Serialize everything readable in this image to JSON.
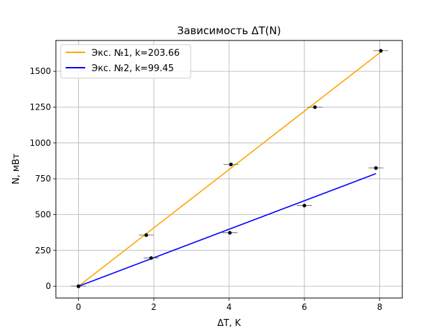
{
  "chart_data": {
    "type": "line",
    "title": "Зависимость ΔT(N)",
    "xlabel": "ΔT, K",
    "ylabel": "N, мВт",
    "xlim": [
      -0.6,
      8.6
    ],
    "ylim": [
      -82,
      1715
    ],
    "xticks": [
      0,
      2,
      4,
      6,
      8
    ],
    "xtick_labels": [
      "0",
      "2",
      "4",
      "6",
      "8"
    ],
    "yticks": [
      0,
      250,
      500,
      750,
      1000,
      1250,
      1500
    ],
    "ytick_labels": [
      "0",
      "250",
      "500",
      "750",
      "1000",
      "1250",
      "1500"
    ],
    "grid": true,
    "legend_position": "top-left",
    "series": [
      {
        "name": "Экс. №1, k=203.66",
        "color": "#ffa500",
        "line_x": [
          0,
          8.03
        ],
        "line_y": [
          0,
          1635
        ],
        "points_x": [
          0,
          1.8,
          4.05,
          6.28,
          8.03
        ],
        "points_y": [
          0,
          357,
          850,
          1250,
          1643
        ],
        "x_err": 0.2
      },
      {
        "name": "Экс. №2, k=99.45",
        "color": "#0000ff",
        "line_x": [
          0,
          7.9
        ],
        "line_y": [
          0,
          786
        ],
        "points_x": [
          0,
          1.93,
          4.02,
          6.0,
          7.9
        ],
        "points_y": [
          0,
          197,
          373,
          563,
          825
        ],
        "x_err": 0.2
      }
    ]
  }
}
